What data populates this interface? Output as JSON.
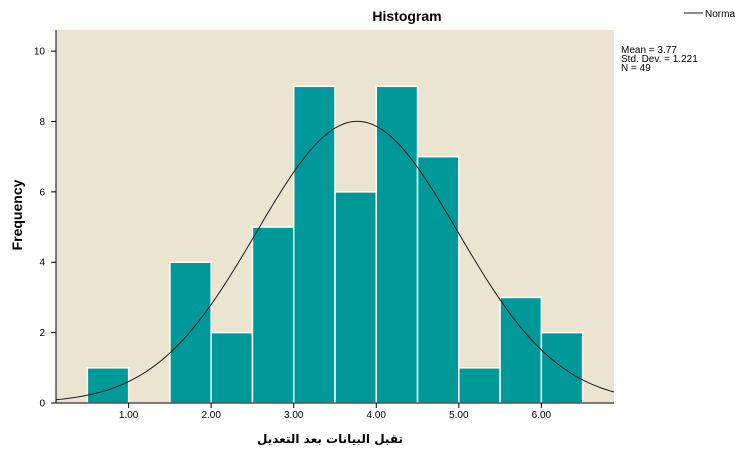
{
  "chart_data": {
    "type": "bar",
    "title": "Histogram",
    "xlabel": "تقبل البيانات بعد التعديل",
    "ylabel": "Frequency",
    "xlim": [
      0.12,
      6.88
    ],
    "ylim": [
      0,
      10.6
    ],
    "bin_width": 0.5,
    "bin_starts": [
      0.5,
      1.5,
      2.0,
      2.5,
      3.0,
      3.5,
      4.0,
      4.5,
      5.0,
      5.5,
      6.0
    ],
    "values": [
      1,
      4,
      2,
      5,
      9,
      6,
      9,
      7,
      1,
      3,
      2
    ],
    "x_ticks": [
      1,
      2,
      3,
      4,
      5,
      6
    ],
    "x_tick_labels": [
      "1.00",
      "2.00",
      "3.00",
      "4.00",
      "5.00",
      "6.00"
    ],
    "y_ticks": [
      0,
      2,
      4,
      6,
      8,
      10
    ],
    "y_tick_labels": [
      "0",
      "2",
      "4",
      "6",
      "8",
      "10"
    ],
    "stats": [
      "Mean = 3.77",
      "Std. Dev. = 1.221",
      "N = 49"
    ],
    "normal_curve": {
      "mean": 3.77,
      "std": 1.221,
      "n": 49
    },
    "legend": {
      "label": "Norma",
      "placement": "top-right"
    },
    "colors": {
      "bar": "#009999",
      "bar_edge": "#ffffff",
      "plot_bg": "#ebe4d1",
      "curve": "#1a1a1a"
    }
  }
}
